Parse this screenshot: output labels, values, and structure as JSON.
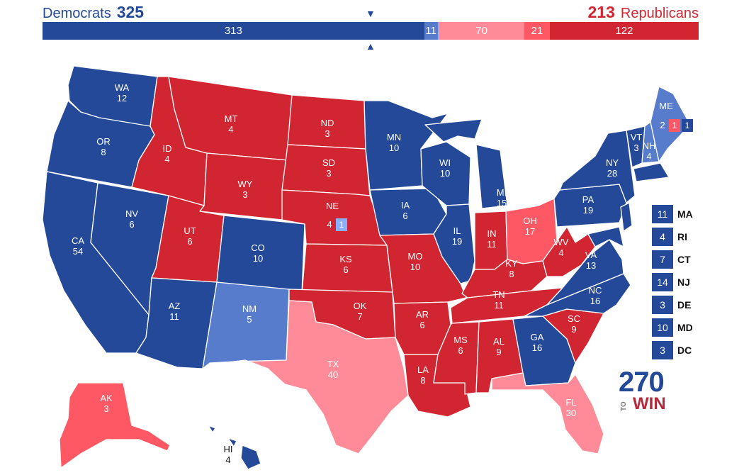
{
  "header": {
    "dem_label": "Democrats",
    "dem_total": "325",
    "rep_total": "213",
    "rep_label": "Republicans",
    "marker_top": "▼",
    "marker_bottom": "▲"
  },
  "bar": [
    {
      "value": 313,
      "label": "313",
      "color": "#244999"
    },
    {
      "value": 11,
      "label": "11",
      "color": "#577ccc"
    },
    {
      "value": 1,
      "label": "1",
      "color": "#8aafff"
    },
    {
      "value": 70,
      "label": "70",
      "color": "#ff8b98"
    },
    {
      "value": 21,
      "label": "21",
      "color": "#ff5865"
    },
    {
      "value": 122,
      "label": "122",
      "color": "#d22532"
    }
  ],
  "colors": {
    "safe_dem": "#244999",
    "likely_dem": "#577ccc",
    "lean_dem": "#8aafff",
    "lean_rep": "#ff8b98",
    "likely_rep": "#ff5865",
    "safe_rep": "#d22532"
  },
  "states": [
    {
      "abbr": "WA",
      "ev": "12",
      "cat": "safe_dem"
    },
    {
      "abbr": "OR",
      "ev": "8",
      "cat": "safe_dem"
    },
    {
      "abbr": "CA",
      "ev": "54",
      "cat": "safe_dem"
    },
    {
      "abbr": "NV",
      "ev": "6",
      "cat": "safe_dem"
    },
    {
      "abbr": "ID",
      "ev": "4",
      "cat": "safe_rep"
    },
    {
      "abbr": "MT",
      "ev": "4",
      "cat": "safe_rep"
    },
    {
      "abbr": "WY",
      "ev": "3",
      "cat": "safe_rep"
    },
    {
      "abbr": "UT",
      "ev": "6",
      "cat": "safe_rep"
    },
    {
      "abbr": "AZ",
      "ev": "11",
      "cat": "safe_dem"
    },
    {
      "abbr": "CO",
      "ev": "10",
      "cat": "safe_dem"
    },
    {
      "abbr": "NM",
      "ev": "5",
      "cat": "likely_dem"
    },
    {
      "abbr": "ND",
      "ev": "3",
      "cat": "safe_rep"
    },
    {
      "abbr": "SD",
      "ev": "3",
      "cat": "safe_rep"
    },
    {
      "abbr": "NE",
      "ev": "4",
      "cat": "safe_rep"
    },
    {
      "abbr": "KS",
      "ev": "6",
      "cat": "safe_rep"
    },
    {
      "abbr": "OK",
      "ev": "7",
      "cat": "safe_rep"
    },
    {
      "abbr": "TX",
      "ev": "40",
      "cat": "lean_rep"
    },
    {
      "abbr": "MN",
      "ev": "10",
      "cat": "safe_dem"
    },
    {
      "abbr": "IA",
      "ev": "6",
      "cat": "safe_dem"
    },
    {
      "abbr": "MO",
      "ev": "10",
      "cat": "safe_rep"
    },
    {
      "abbr": "AR",
      "ev": "6",
      "cat": "safe_rep"
    },
    {
      "abbr": "LA",
      "ev": "8",
      "cat": "safe_rep"
    },
    {
      "abbr": "WI",
      "ev": "10",
      "cat": "safe_dem"
    },
    {
      "abbr": "IL",
      "ev": "19",
      "cat": "safe_dem"
    },
    {
      "abbr": "MI",
      "ev": "15",
      "cat": "safe_dem"
    },
    {
      "abbr": "IN",
      "ev": "11",
      "cat": "safe_rep"
    },
    {
      "abbr": "OH",
      "ev": "17",
      "cat": "likely_rep"
    },
    {
      "abbr": "KY",
      "ev": "8",
      "cat": "safe_rep"
    },
    {
      "abbr": "TN",
      "ev": "11",
      "cat": "safe_rep"
    },
    {
      "abbr": "MS",
      "ev": "6",
      "cat": "safe_rep"
    },
    {
      "abbr": "AL",
      "ev": "9",
      "cat": "safe_rep"
    },
    {
      "abbr": "GA",
      "ev": "16",
      "cat": "safe_dem"
    },
    {
      "abbr": "FL",
      "ev": "30",
      "cat": "lean_rep"
    },
    {
      "abbr": "SC",
      "ev": "9",
      "cat": "safe_rep"
    },
    {
      "abbr": "NC",
      "ev": "16",
      "cat": "safe_dem"
    },
    {
      "abbr": "VA",
      "ev": "13",
      "cat": "safe_dem"
    },
    {
      "abbr": "WV",
      "ev": "4",
      "cat": "safe_rep"
    },
    {
      "abbr": "PA",
      "ev": "19",
      "cat": "safe_dem"
    },
    {
      "abbr": "NY",
      "ev": "28",
      "cat": "safe_dem"
    },
    {
      "abbr": "VT",
      "ev": "3",
      "cat": "safe_dem"
    },
    {
      "abbr": "NH",
      "ev": "4",
      "cat": "likely_dem"
    },
    {
      "abbr": "ME",
      "ev": "",
      "cat": "likely_dem"
    },
    {
      "abbr": "AK",
      "ev": "3",
      "cat": "likely_rep"
    },
    {
      "abbr": "HI",
      "ev": "4",
      "cat": "safe_dem"
    }
  ],
  "ne_districts": {
    "statewide": "4",
    "cd2": "1"
  },
  "me_districts": {
    "statewide": "2",
    "cd1": "1",
    "cd2": "1"
  },
  "small_states": [
    {
      "ev": "11",
      "abbr": "MA"
    },
    {
      "ev": "4",
      "abbr": "RI"
    },
    {
      "ev": "7",
      "abbr": "CT"
    },
    {
      "ev": "14",
      "abbr": "NJ"
    },
    {
      "ev": "3",
      "abbr": "DE"
    },
    {
      "ev": "10",
      "abbr": "MD"
    },
    {
      "ev": "3",
      "abbr": "DC"
    }
  ],
  "logo": {
    "number": "270",
    "to": "TO",
    "win": "WIN"
  }
}
